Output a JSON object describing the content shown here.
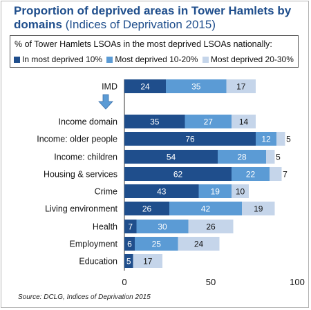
{
  "header": {
    "title_main": "Proportion of deprived areas in Tower Hamlets by domains",
    "title_sub": "(Indices of Deprivation 2015)"
  },
  "legend": {
    "heading": "% of Tower Hamlets LSOAs in the most deprived LSOAs nationally:",
    "position": "top"
  },
  "source": "Source: DCLG, Indices of Deprivation 2015",
  "colors": {
    "in_most_deprived_10": "#1f4e8c",
    "most_deprived_10_20": "#5b9bd5",
    "most_deprived_20_30": "#c5d5ea",
    "arrow": "#5b9bd5"
  },
  "icons": {
    "arrow": "down-arrow-icon"
  },
  "chart_data": {
    "type": "bar",
    "orientation": "horizontal",
    "stacked": true,
    "categories": [
      "IMD",
      "Income domain",
      "Income: older people",
      "Income: children",
      "Housing & services",
      "Crime",
      "Living environment",
      "Health",
      "Employment",
      "Education"
    ],
    "series": [
      {
        "name": "In most deprived 10%",
        "values": [
          24,
          35,
          76,
          54,
          62,
          43,
          26,
          7,
          6,
          5
        ]
      },
      {
        "name": "Most deprived 10-20%",
        "values": [
          35,
          27,
          12,
          28,
          22,
          19,
          42,
          30,
          25,
          0
        ]
      },
      {
        "name": "Most deprived 20-30%",
        "values": [
          17,
          14,
          5,
          5,
          7,
          10,
          19,
          26,
          24,
          17
        ]
      }
    ],
    "labels": [
      [
        "24",
        "35",
        "17"
      ],
      [
        "35",
        "27",
        "14"
      ],
      [
        "76",
        "12",
        "5"
      ],
      [
        "54",
        "28",
        "5"
      ],
      [
        "62",
        "22",
        "7"
      ],
      [
        "43",
        "19",
        "10"
      ],
      [
        "26",
        "42",
        "19"
      ],
      [
        "7",
        "30",
        "26"
      ],
      [
        "6",
        "25",
        "24"
      ],
      [
        "5",
        "",
        "17"
      ]
    ],
    "xlim": [
      0,
      100
    ],
    "xticks": [
      "0",
      "50",
      "100"
    ],
    "grid": false
  }
}
